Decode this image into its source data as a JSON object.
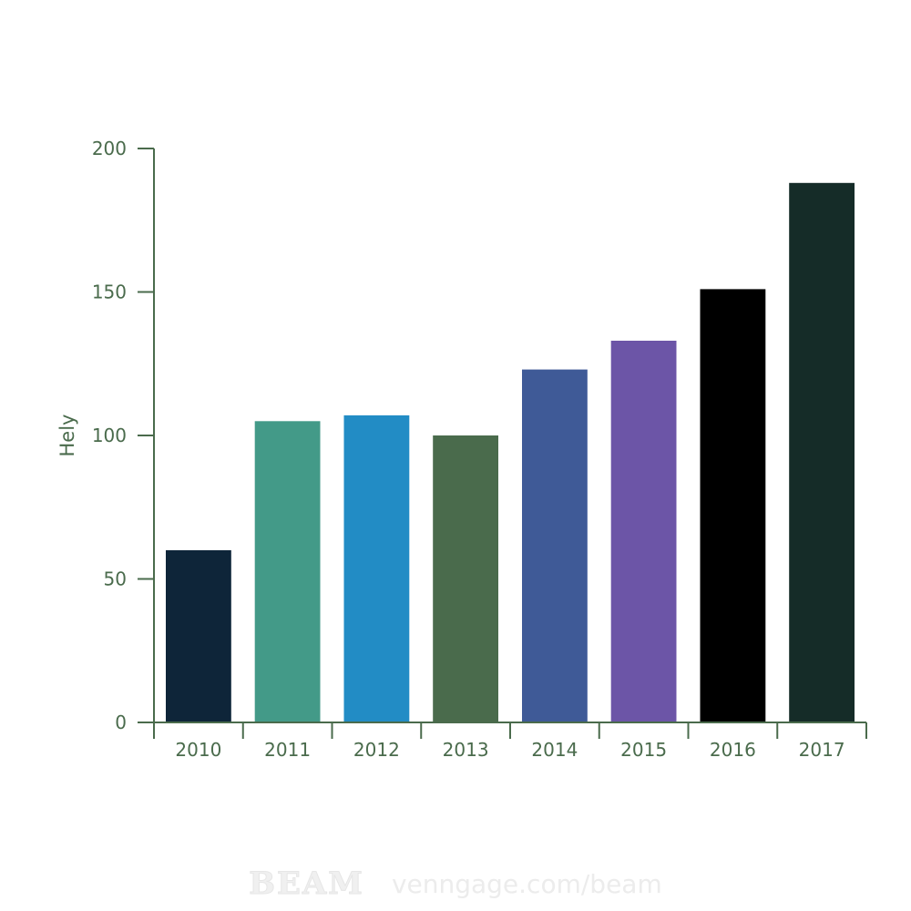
{
  "chart_data": {
    "type": "bar",
    "title": "",
    "xlabel": "",
    "ylabel": "Hely",
    "categories": [
      "2010",
      "2011",
      "2012",
      "2013",
      "2014",
      "2015",
      "2016",
      "2017"
    ],
    "values": [
      60,
      105,
      107,
      100,
      123,
      133,
      151,
      188
    ],
    "colors": [
      "#0e2539",
      "#439a88",
      "#228cc5",
      "#4a6b4c",
      "#3f5a97",
      "#6c55a7",
      "#000000",
      "#152c28"
    ],
    "ylim": [
      0,
      200
    ],
    "yticks": [
      "0",
      "50",
      "100",
      "150",
      "200"
    ],
    "axis_color": "#4a6b4c",
    "grid": false,
    "legend": "none"
  },
  "watermark": {
    "logo": "BEAM",
    "url": "venngage.com/beam"
  }
}
